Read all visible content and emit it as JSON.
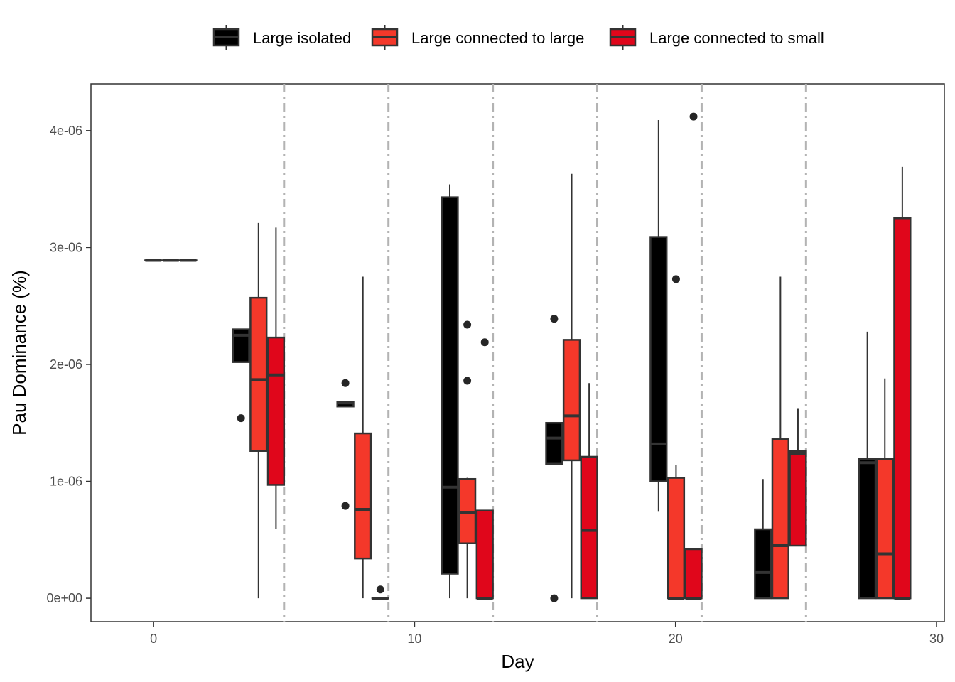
{
  "chart_data": {
    "type": "box",
    "xlabel": "Day",
    "ylabel": "Pau Dominance (%)",
    "xlim": [
      -2.4,
      30.3
    ],
    "ylim": [
      -2e-07,
      4.4e-06
    ],
    "x_ticks": [
      {
        "value": 0,
        "label": "0"
      },
      {
        "value": 10,
        "label": "10"
      },
      {
        "value": 20,
        "label": "20"
      },
      {
        "value": 30,
        "label": "30"
      }
    ],
    "y_ticks": [
      {
        "value": 0,
        "label": "0e+00"
      },
      {
        "value": 1e-06,
        "label": "1e-06"
      },
      {
        "value": 2e-06,
        "label": "2e-06"
      },
      {
        "value": 3e-06,
        "label": "3e-06"
      },
      {
        "value": 4e-06,
        "label": "4e-06"
      }
    ],
    "grid": false,
    "legend_position": "top",
    "dashed_vlines": [
      5,
      9,
      13,
      17,
      21,
      25
    ],
    "box_width_days": 0.62,
    "series": [
      {
        "name": "Large isolated",
        "color": "#000000",
        "boxes": [
          {
            "x": -0.01,
            "q1": 2.89e-06,
            "median": 2.89e-06,
            "q3": 2.89e-06,
            "lower": 2.89e-06,
            "upper": 2.89e-06,
            "outliers": []
          },
          {
            "x": 3.35,
            "q1": 2.02e-06,
            "median": 2.25e-06,
            "q3": 2.3e-06,
            "lower": 2.02e-06,
            "upper": 2.3e-06,
            "outliers": [
              1.54e-06
            ]
          },
          {
            "x": 7.35,
            "q1": 1.64e-06,
            "median": 1.67e-06,
            "q3": 1.68e-06,
            "lower": 1.64e-06,
            "upper": 1.68e-06,
            "outliers": [
              1.84e-06,
              7.9e-07
            ]
          },
          {
            "x": 11.35,
            "q1": 2.1e-07,
            "median": 9.5e-07,
            "q3": 3.43e-06,
            "lower": 0,
            "upper": 3.54e-06,
            "outliers": []
          },
          {
            "x": 15.35,
            "q1": 1.15e-06,
            "median": 1.37e-06,
            "q3": 1.5e-06,
            "lower": 1.15e-06,
            "upper": 1.5e-06,
            "outliers": [
              2.39e-06,
              0
            ]
          },
          {
            "x": 19.35,
            "q1": 1e-06,
            "median": 1.32e-06,
            "q3": 3.09e-06,
            "lower": 7.4e-07,
            "upper": 4.09e-06,
            "outliers": []
          },
          {
            "x": 23.35,
            "q1": 0,
            "median": 2.2e-07,
            "q3": 5.9e-07,
            "lower": 0,
            "upper": 1.02e-06,
            "outliers": []
          },
          {
            "x": 27.35,
            "q1": 0,
            "median": 1.16e-06,
            "q3": 1.19e-06,
            "lower": 0,
            "upper": 2.28e-06,
            "outliers": []
          }
        ]
      },
      {
        "name": "Large connected to large",
        "color": "#f4382a",
        "boxes": [
          {
            "x": 0.66,
            "q1": 2.89e-06,
            "median": 2.89e-06,
            "q3": 2.89e-06,
            "lower": 2.89e-06,
            "upper": 2.89e-06,
            "outliers": []
          },
          {
            "x": 4.02,
            "q1": 1.26e-06,
            "median": 1.87e-06,
            "q3": 2.57e-06,
            "lower": 0,
            "upper": 3.21e-06,
            "outliers": []
          },
          {
            "x": 8.02,
            "q1": 3.4e-07,
            "median": 7.6e-07,
            "q3": 1.41e-06,
            "lower": 0,
            "upper": 2.75e-06,
            "outliers": []
          },
          {
            "x": 12.02,
            "q1": 4.7e-07,
            "median": 7.3e-07,
            "q3": 1.02e-06,
            "lower": 0,
            "upper": 1.03e-06,
            "outliers": [
              2.34e-06,
              1.86e-06
            ]
          },
          {
            "x": 16.02,
            "q1": 1.18e-06,
            "median": 1.56e-06,
            "q3": 2.21e-06,
            "lower": 0,
            "upper": 3.63e-06,
            "outliers": []
          },
          {
            "x": 20.02,
            "q1": 0,
            "median": 0,
            "q3": 1.03e-06,
            "lower": 0,
            "upper": 1.14e-06,
            "outliers": [
              2.73e-06
            ]
          },
          {
            "x": 24.02,
            "q1": 0,
            "median": 4.5e-07,
            "q3": 1.36e-06,
            "lower": 0,
            "upper": 2.75e-06,
            "outliers": []
          },
          {
            "x": 28.02,
            "q1": 0,
            "median": 3.8e-07,
            "q3": 1.19e-06,
            "lower": 0,
            "upper": 1.88e-06,
            "outliers": []
          }
        ]
      },
      {
        "name": "Large connected to small",
        "color": "#e0061b",
        "boxes": [
          {
            "x": 1.33,
            "q1": 2.89e-06,
            "median": 2.89e-06,
            "q3": 2.89e-06,
            "lower": 2.89e-06,
            "upper": 2.89e-06,
            "outliers": []
          },
          {
            "x": 4.69,
            "q1": 9.7e-07,
            "median": 1.91e-06,
            "q3": 2.23e-06,
            "lower": 5.9e-07,
            "upper": 3.17e-06,
            "outliers": []
          },
          {
            "x": 8.69,
            "q1": 0,
            "median": 0,
            "q3": 0,
            "lower": 0,
            "upper": 0,
            "outliers": [
              7.5e-08
            ]
          },
          {
            "x": 12.69,
            "q1": 0,
            "median": 0,
            "q3": 7.5e-07,
            "lower": 0,
            "upper": 7.5e-07,
            "outliers": [
              2.19e-06
            ]
          },
          {
            "x": 16.69,
            "q1": 0,
            "median": 5.8e-07,
            "q3": 1.21e-06,
            "lower": 0,
            "upper": 1.84e-06,
            "outliers": []
          },
          {
            "x": 20.69,
            "q1": 0,
            "median": 0,
            "q3": 4.2e-07,
            "lower": 0,
            "upper": 4.2e-07,
            "outliers": [
              4.12e-06
            ]
          },
          {
            "x": 24.69,
            "q1": 4.5e-07,
            "median": 1.24e-06,
            "q3": 1.26e-06,
            "lower": 4.5e-07,
            "upper": 1.62e-06,
            "outliers": []
          },
          {
            "x": 28.69,
            "q1": 0,
            "median": 0,
            "q3": 3.25e-06,
            "lower": 0,
            "upper": 3.69e-06,
            "outliers": []
          }
        ]
      }
    ]
  }
}
